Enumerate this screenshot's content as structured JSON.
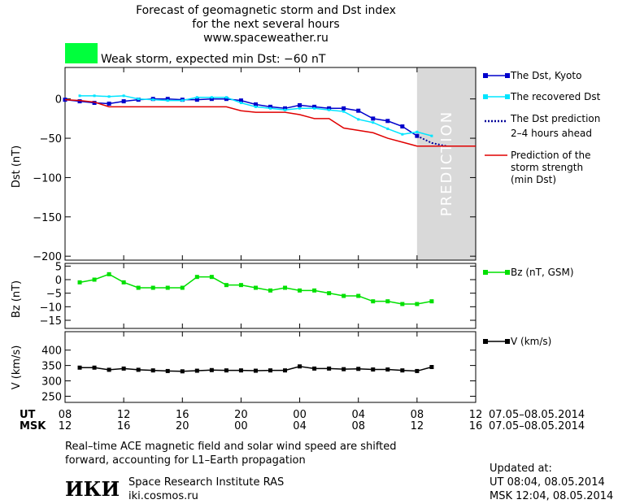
{
  "title_lines": [
    "Forecast of geomagnetic storm and Dst index",
    "for the next several hours",
    "www.spaceweather.ru"
  ],
  "status": {
    "label": "Weak storm, expected min Dst: −60 nT",
    "color": "#00ff3c"
  },
  "prediction_band_label": "PREDICTION",
  "colors": {
    "dst": "#0000cc",
    "recovered": "#00e5ff",
    "prediction": "#000099",
    "strength": "#e00000",
    "bz": "#00e000",
    "v": "#000000",
    "band": "#d9d9d9"
  },
  "legend": {
    "dst_kyoto": "The Dst, Kyoto",
    "recovered": "The recovered Dst",
    "prediction": [
      "The Dst prediction",
      "2–4 hours ahead"
    ],
    "strength": [
      "Prediction of the",
      "storm strength",
      "(min Dst)"
    ],
    "bz": "Bz (nT, GSM)",
    "v": "V (km/s)"
  },
  "chart_data": [
    {
      "type": "line",
      "title": "",
      "ylabel": "Dst (nT)",
      "ylim": [
        -205,
        40
      ],
      "yticks": [
        0,
        -50,
        -100,
        -150,
        -200
      ],
      "x_unit": "hours since 07.05 08 UT",
      "xlim": [
        0,
        28
      ],
      "prediction_region": [
        24,
        28
      ],
      "series": [
        {
          "name": "The Dst, Kyoto",
          "x": [
            0,
            1,
            2,
            3,
            4,
            5,
            6,
            7,
            8,
            9,
            10,
            11,
            12,
            13,
            14,
            15,
            16,
            17,
            18,
            19,
            20,
            21,
            22,
            23,
            24
          ],
          "y": [
            -1,
            -3,
            -5,
            -6,
            -3,
            -1,
            0,
            0,
            -1,
            -1,
            0,
            0,
            -2,
            -7,
            -10,
            -12,
            -8,
            -10,
            -12,
            -12,
            -15,
            -25,
            -28,
            -35,
            -47
          ]
        },
        {
          "name": "The recovered Dst",
          "x": [
            1,
            2,
            3,
            4,
            5,
            6,
            7,
            8,
            9,
            10,
            11,
            12,
            13,
            14,
            15,
            16,
            17,
            18,
            19,
            20,
            21,
            22,
            23,
            24,
            25
          ],
          "y": [
            4,
            4,
            3,
            4,
            0,
            -1,
            -2,
            -2,
            2,
            2,
            2,
            -5,
            -10,
            -12,
            -14,
            -12,
            -12,
            -14,
            -16,
            -26,
            -30,
            -38,
            -45,
            -42,
            -47
          ]
        },
        {
          "name": "The Dst prediction",
          "x": [
            24,
            25,
            26
          ],
          "y": [
            -47,
            -56,
            -60
          ]
        },
        {
          "name": "Prediction of the storm strength",
          "x": [
            0,
            1,
            2,
            3,
            4,
            5,
            6,
            7,
            8,
            9,
            10,
            11,
            12,
            13,
            14,
            15,
            16,
            17,
            18,
            19,
            20,
            21,
            22,
            23,
            24,
            25,
            26,
            27,
            28
          ],
          "y": [
            -1,
            -2,
            -4,
            -10,
            -10,
            -10,
            -10,
            -10,
            -10,
            -10,
            -10,
            -10,
            -15,
            -17,
            -17,
            -17,
            -20,
            -25,
            -25,
            -37,
            -40,
            -43,
            -50,
            -55,
            -60,
            -60,
            -60,
            -60,
            -60
          ]
        }
      ]
    },
    {
      "type": "line",
      "title": "",
      "ylabel": "Bz (nT)",
      "ylim": [
        -18,
        6
      ],
      "yticks": [
        5,
        0,
        -5,
        -10,
        -15
      ],
      "series": [
        {
          "name": "Bz (nT, GSM)",
          "x": [
            1,
            2,
            3,
            4,
            5,
            6,
            7,
            8,
            9,
            10,
            11,
            12,
            13,
            14,
            15,
            16,
            17,
            18,
            19,
            20,
            21,
            22,
            23,
            24,
            25
          ],
          "y": [
            -1,
            0,
            2,
            -1,
            -3,
            -3,
            -3,
            -3,
            1,
            1,
            -2,
            -2,
            -3,
            -4,
            -3,
            -4,
            -4,
            -5,
            -6,
            -6,
            -8,
            -8,
            -9,
            -9,
            -8
          ]
        }
      ]
    },
    {
      "type": "line",
      "title": "",
      "ylabel": "V (km/s)",
      "ylim": [
        230,
        460
      ],
      "yticks": [
        400,
        350,
        300,
        250
      ],
      "series": [
        {
          "name": "V (km/s)",
          "x": [
            1,
            2,
            3,
            4,
            5,
            6,
            7,
            8,
            9,
            10,
            11,
            12,
            13,
            14,
            15,
            16,
            17,
            18,
            19,
            20,
            21,
            22,
            23,
            24,
            25
          ],
          "y": [
            343,
            343,
            336,
            340,
            336,
            334,
            332,
            331,
            333,
            335,
            334,
            334,
            333,
            334,
            334,
            347,
            340,
            340,
            338,
            339,
            337,
            337,
            334,
            332,
            345
          ]
        }
      ]
    }
  ],
  "time_axis": {
    "ut_label": "UT",
    "msk_label": "MSK",
    "ut_ticks": [
      "08",
      "12",
      "16",
      "20",
      "00",
      "04",
      "08",
      "12"
    ],
    "msk_ticks": [
      "12",
      "16",
      "20",
      "00",
      "04",
      "08",
      "12",
      "16"
    ],
    "tick_hours": [
      0,
      4,
      8,
      12,
      16,
      20,
      24,
      28
    ],
    "ut_range": "07.05–08.05.2014",
    "msk_range": "07.05–08.05.2014"
  },
  "footer": {
    "note_lines": [
      "Real–time ACE magnetic field and solar wind speed are shifted",
      "forward, accounting for L1–Earth propagation"
    ],
    "logo": "ИКИ",
    "institute": "Space Research Institute RAS",
    "site": "iki.cosmos.ru",
    "updated_label": "Updated at:",
    "updated_ut": "UT   08:04, 08.05.2014",
    "updated_msk": "MSK 12:04, 08.05.2014"
  }
}
